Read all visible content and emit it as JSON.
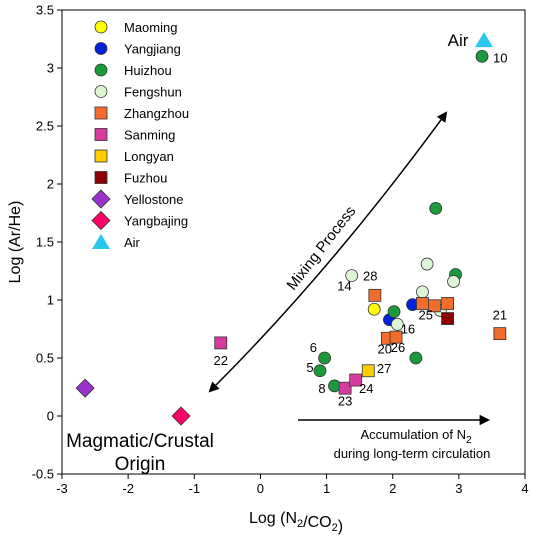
{
  "chart_data": {
    "type": "scatter",
    "title": "",
    "xlabel": "Log (N2/CO2)",
    "ylabel": "Log (Ar/He)",
    "xlim": [
      -3,
      4
    ],
    "ylim": [
      -0.5,
      3.5
    ],
    "xticks": [
      -3,
      -2,
      -1,
      0,
      1,
      2,
      3,
      4
    ],
    "yticks": [
      -0.5,
      0,
      0.5,
      1,
      1.5,
      2,
      2.5,
      3,
      3.5
    ],
    "grid": false,
    "legend_position": "top-left",
    "series": [
      {
        "name": "Maoming",
        "marker": "circle",
        "color": "#ffff00",
        "points": [
          {
            "x": 1.72,
            "y": 0.92
          }
        ]
      },
      {
        "name": "Yangjiang",
        "marker": "circle",
        "color": "#0022dd",
        "points": [
          {
            "x": 1.95,
            "y": 0.83
          },
          {
            "x": 2.3,
            "y": 0.96
          }
        ]
      },
      {
        "name": "Huizhou",
        "marker": "circle",
        "color": "#1a9a3a",
        "points": [
          {
            "x": 3.35,
            "y": 3.1,
            "label": "10"
          },
          {
            "x": 2.65,
            "y": 1.79
          },
          {
            "x": 2.95,
            "y": 1.22
          },
          {
            "x": 2.02,
            "y": 0.9
          },
          {
            "x": 0.97,
            "y": 0.5
          },
          {
            "x": 0.9,
            "y": 0.39
          },
          {
            "x": 1.12,
            "y": 0.26
          },
          {
            "x": 2.35,
            "y": 0.5
          }
        ]
      },
      {
        "name": "Fengshun",
        "marker": "circle",
        "color": "#ddf5d5",
        "points": [
          {
            "x": 1.38,
            "y": 1.21
          },
          {
            "x": 2.52,
            "y": 1.31
          },
          {
            "x": 2.45,
            "y": 1.07
          },
          {
            "x": 2.92,
            "y": 1.16
          },
          {
            "x": 2.72,
            "y": 0.91
          },
          {
            "x": 2.07,
            "y": 0.79
          }
        ]
      },
      {
        "name": "Zhangzhou",
        "marker": "square",
        "color": "#f26d2b",
        "points": [
          {
            "x": 1.73,
            "y": 1.04
          },
          {
            "x": 2.45,
            "y": 0.97
          },
          {
            "x": 2.63,
            "y": 0.95
          },
          {
            "x": 2.83,
            "y": 0.97
          },
          {
            "x": 1.92,
            "y": 0.67
          },
          {
            "x": 2.05,
            "y": 0.68
          },
          {
            "x": 3.62,
            "y": 0.71,
            "label": "21"
          }
        ]
      },
      {
        "name": "Sanming",
        "marker": "square",
        "color": "#d63ba0",
        "points": [
          {
            "x": -0.6,
            "y": 0.63,
            "label": "22"
          },
          {
            "x": 1.28,
            "y": 0.24
          },
          {
            "x": 1.44,
            "y": 0.31
          }
        ]
      },
      {
        "name": "Longyan",
        "marker": "square",
        "color": "#ffcc00",
        "points": [
          {
            "x": 1.63,
            "y": 0.39
          }
        ]
      },
      {
        "name": "Fuzhou",
        "marker": "square",
        "color": "#8b0000",
        "points": [
          {
            "x": 2.83,
            "y": 0.84
          }
        ]
      },
      {
        "name": "Yellostone",
        "marker": "diamond",
        "color": "#9933cc",
        "points": [
          {
            "x": -2.65,
            "y": 0.24
          }
        ]
      },
      {
        "name": "Yangbajing",
        "marker": "diamond",
        "color": "#ff0066",
        "points": [
          {
            "x": -1.2,
            "y": 0.0
          }
        ]
      },
      {
        "name": "Air",
        "marker": "triangle",
        "color": "#29c7f0",
        "points": [
          {
            "x": 3.38,
            "y": 3.24
          }
        ]
      }
    ],
    "point_labels": [
      {
        "text": "14",
        "x": 1.27,
        "y": 1.08
      },
      {
        "text": "28",
        "x": 1.66,
        "y": 1.17
      },
      {
        "text": "25",
        "x": 2.5,
        "y": 0.83
      },
      {
        "text": "16",
        "x": 2.23,
        "y": 0.71
      },
      {
        "text": "20",
        "x": 1.88,
        "y": 0.54
      },
      {
        "text": "26",
        "x": 2.08,
        "y": 0.55
      },
      {
        "text": "6",
        "x": 0.8,
        "y": 0.55
      },
      {
        "text": "5",
        "x": 0.75,
        "y": 0.38
      },
      {
        "text": "8",
        "x": 0.93,
        "y": 0.2
      },
      {
        "text": "27",
        "x": 1.87,
        "y": 0.37
      },
      {
        "text": "24",
        "x": 1.6,
        "y": 0.2
      },
      {
        "text": "23",
        "x": 1.28,
        "y": 0.09
      }
    ],
    "annotations": {
      "air_label": "Air",
      "magmatic_line1": "Magmatic/Crustal",
      "magmatic_line2": "Origin",
      "mixing": "Mixing Process",
      "accum_line1": "Accumulation of N",
      "accum_sub": "2",
      "accum_line2": "during long-term circulation"
    }
  }
}
